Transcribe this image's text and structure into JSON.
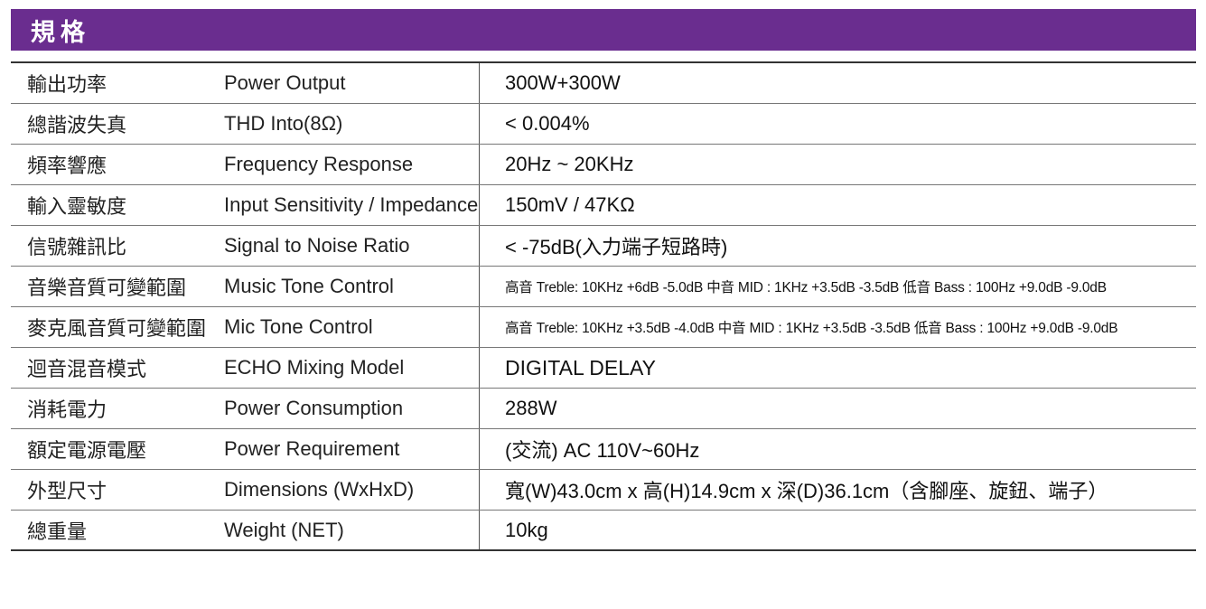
{
  "header": {
    "title": "規格",
    "color": "#6a2d8f"
  },
  "rows": [
    {
      "zh": "輸出功率",
      "en": "Power Output",
      "value": "300W+300W"
    },
    {
      "zh": "總諧波失真",
      "en": "THD Into(8Ω)",
      "value": "< 0.004%"
    },
    {
      "zh": "頻率響應",
      "en": "Frequency Response",
      "value": "20Hz ~ 20KHz"
    },
    {
      "zh": "輸入靈敏度",
      "en": "Input Sensitivity / Impedance",
      "value": "150mV / 47KΩ"
    },
    {
      "zh": "信號雜訊比",
      "en": "Signal to Noise Ratio",
      "value": "< -75dB(入力端子短路時)"
    },
    {
      "zh": "音樂音質可變範圍",
      "en": "Music Tone Control",
      "value": "高音  Treble: 10KHz +6dB -5.0dB   中音  MID : 1KHz +3.5dB -3.5dB   低音  Bass : 100Hz +9.0dB -9.0dB"
    },
    {
      "zh": "麥克風音質可變範圍",
      "en": "Mic Tone Control",
      "value": "高音  Treble: 10KHz +3.5dB -4.0dB   中音  MID : 1KHz +3.5dB -3.5dB   低音  Bass :  100Hz +9.0dB -9.0dB"
    },
    {
      "zh": "迴音混音模式",
      "en": "ECHO Mixing Model",
      "value": "DIGITAL DELAY"
    },
    {
      "zh": "消耗電力",
      "en": "Power Consumption",
      "value": "288W"
    },
    {
      "zh": "額定電源電壓",
      "en": "Power Requirement",
      "value": "(交流) AC 110V~60Hz"
    },
    {
      "zh": "外型尺寸",
      "en": "Dimensions (WxHxD)",
      "value": "寬(W)43.0cm x 高(H)14.9cm x 深(D)36.1cm（含腳座、旋鈕、端子）"
    },
    {
      "zh": "總重量",
      "en": "Weight (NET)",
      "value": "10kg"
    }
  ]
}
